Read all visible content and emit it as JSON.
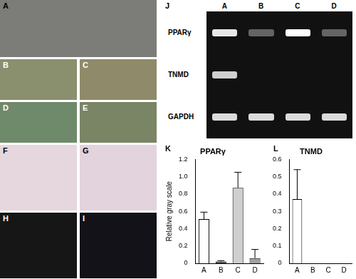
{
  "photo_panels": [
    "A",
    "B",
    "C",
    "D",
    "E",
    "F",
    "G",
    "H",
    "I"
  ],
  "gel": {
    "panel": "J",
    "lanes": [
      "A",
      "B",
      "C",
      "D"
    ],
    "rows": [
      {
        "label": "PPARγ",
        "bands": [
          0.9,
          0.35,
          1.0,
          0.35
        ]
      },
      {
        "label": "TNMD",
        "bands": [
          0.8,
          0,
          0,
          0
        ]
      },
      {
        "label": "GAPDH",
        "bands": [
          0.85,
          0.85,
          0.85,
          0.85
        ]
      }
    ]
  },
  "chart_data": [
    {
      "type": "bar",
      "panel": "K",
      "title": "PPARγ",
      "y_label": "Relative gray scale",
      "categories": [
        "A",
        "B",
        "C",
        "D"
      ],
      "values": [
        0.51,
        0.02,
        0.87,
        0.06
      ],
      "errors": [
        0.08,
        0.01,
        0.18,
        0.1
      ],
      "colors": [
        "#ffffff",
        "#404040",
        "#cfcfcf",
        "#a0a0a0"
      ],
      "ylim": [
        0,
        1.2
      ],
      "yticks": [
        0,
        0.2,
        0.4,
        0.6,
        0.8,
        {
          "value": 1,
          "label": "1.0"
        },
        1.2
      ],
      "grid": false
    },
    {
      "type": "bar",
      "panel": "L",
      "title": "TNMD",
      "categories": [
        "A",
        "B",
        "C",
        "D"
      ],
      "values": [
        0.37,
        0,
        0,
        0
      ],
      "errors": [
        0.17,
        0,
        0,
        0
      ],
      "colors": [
        "#ffffff",
        "#404040",
        "#cfcfcf",
        "#a0a0a0"
      ],
      "ylim": [
        0,
        0.6
      ],
      "yticks": [
        0,
        0.1,
        0.2,
        0.3,
        0.4,
        0.5,
        0.6
      ],
      "grid": false
    }
  ]
}
